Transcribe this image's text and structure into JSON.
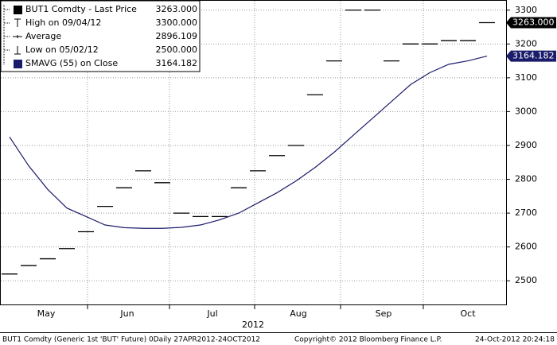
{
  "chart_data": {
    "type": "line",
    "categories": [
      null,
      null,
      null,
      null,
      null,
      null,
      null,
      null,
      null,
      null,
      null,
      null,
      null,
      null,
      null,
      null,
      null,
      null,
      null,
      null,
      null,
      null,
      null,
      null,
      null,
      null
    ],
    "months": [
      "May",
      "Jun",
      "Jul",
      "Aug",
      "Sep",
      "Oct"
    ],
    "year": "2012",
    "series": [
      {
        "name": "BUT1 Comdty - Last Price",
        "color": "#000000",
        "style": "dash",
        "last_label": "3263.000",
        "values": [
          2520,
          2545,
          2565,
          2595,
          2645,
          2720,
          2775,
          2825,
          2790,
          2700,
          2690,
          2690,
          2775,
          2825,
          2870,
          2900,
          3050,
          3150,
          3300,
          3300,
          3150,
          3200,
          3200,
          3210,
          3210,
          3263
        ]
      },
      {
        "name": "SMAVG (55) on Close",
        "color": "#1b1b6b",
        "style": "line",
        "last_label": "3164.182",
        "values": [
          2925,
          2840,
          2770,
          2715,
          2690,
          2665,
          2657,
          2655,
          2655,
          2658,
          2665,
          2680,
          2700,
          2730,
          2760,
          2795,
          2835,
          2880,
          2930,
          2980,
          3030,
          3080,
          3115,
          3140,
          3150,
          3164.182
        ]
      }
    ],
    "stats": [
      {
        "label": "High on 09/04/12",
        "value": 3300,
        "value_label": "3300.000"
      },
      {
        "label": "Average",
        "value": 2896.109,
        "value_label": "2896.109"
      },
      {
        "label": "Low on 05/02/12",
        "value": 2500,
        "value_label": "2500.000"
      }
    ],
    "ylim": [
      2430,
      3330
    ],
    "yticks": [
      2500,
      2600,
      2700,
      2800,
      2900,
      3000,
      3100,
      3200,
      3300
    ],
    "grid": true,
    "footer": {
      "left": "BUT1 Comdty (Generic 1st 'BUT' Future) 0Daily 27APR2012-24OCT2012",
      "center": "Copyright© 2012 Bloomberg Finance L.P.",
      "right": "24-Oct-2012 20:24:18"
    }
  }
}
